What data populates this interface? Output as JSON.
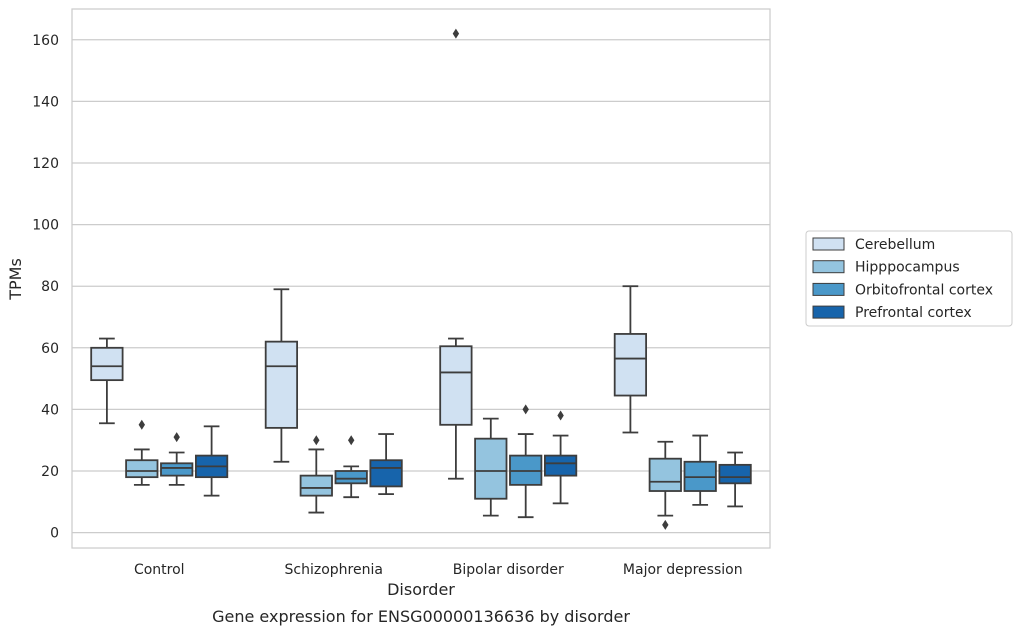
{
  "chart_data": {
    "type": "box",
    "title": "Gene expression for ENSG00000136636 by disorder",
    "xlabel": "Disorder",
    "ylabel": "TPMs",
    "ylim": [
      -5,
      170
    ],
    "yticks": [
      0,
      20,
      40,
      60,
      80,
      100,
      120,
      140,
      160
    ],
    "grid": true,
    "legend_position": "right",
    "categories": [
      "Control",
      "Schizophrenia",
      "Bipolar disorder",
      "Major depression"
    ],
    "series": [
      {
        "name": "Cerebellum",
        "color": "#d0e1f2",
        "boxes": [
          {
            "whisker_low": 35.5,
            "q1": 49.5,
            "median": 54,
            "q3": 60,
            "whisker_high": 63,
            "outliers": []
          },
          {
            "whisker_low": 23,
            "q1": 34,
            "median": 54,
            "q3": 62,
            "whisker_high": 79,
            "outliers": []
          },
          {
            "whisker_low": 17.5,
            "q1": 35,
            "median": 52,
            "q3": 60.5,
            "whisker_high": 63,
            "outliers": [
              162
            ]
          },
          {
            "whisker_low": 32.5,
            "q1": 44.5,
            "median": 56.5,
            "q3": 64.5,
            "whisker_high": 80,
            "outliers": []
          }
        ]
      },
      {
        "name": "Hipppocampus",
        "color": "#94c4df",
        "boxes": [
          {
            "whisker_low": 15.5,
            "q1": 18,
            "median": 20,
            "q3": 23.5,
            "whisker_high": 27,
            "outliers": [
              35
            ]
          },
          {
            "whisker_low": 6.5,
            "q1": 12,
            "median": 14.5,
            "q3": 18.5,
            "whisker_high": 27,
            "outliers": [
              30
            ]
          },
          {
            "whisker_low": 5.5,
            "q1": 11,
            "median": 20,
            "q3": 30.5,
            "whisker_high": 37,
            "outliers": []
          },
          {
            "whisker_low": 5.5,
            "q1": 13.5,
            "median": 16.5,
            "q3": 24,
            "whisker_high": 29.5,
            "outliers": [
              2.5
            ]
          }
        ]
      },
      {
        "name": "Orbitofrontal cortex",
        "color": "#4a98c9",
        "boxes": [
          {
            "whisker_low": 15.5,
            "q1": 18.5,
            "median": 21,
            "q3": 22.5,
            "whisker_high": 26,
            "outliers": [
              31
            ]
          },
          {
            "whisker_low": 11.5,
            "q1": 16,
            "median": 17.5,
            "q3": 20,
            "whisker_high": 21.5,
            "outliers": [
              30
            ]
          },
          {
            "whisker_low": 5,
            "q1": 15.5,
            "median": 20,
            "q3": 25,
            "whisker_high": 32,
            "outliers": [
              40
            ]
          },
          {
            "whisker_low": 9,
            "q1": 13.5,
            "median": 18,
            "q3": 23,
            "whisker_high": 31.5,
            "outliers": []
          }
        ]
      },
      {
        "name": "Prefrontal cortex",
        "color": "#1764ab",
        "boxes": [
          {
            "whisker_low": 12,
            "q1": 18,
            "median": 21.5,
            "q3": 25,
            "whisker_high": 34.5,
            "outliers": []
          },
          {
            "whisker_low": 12.5,
            "q1": 15,
            "median": 21,
            "q3": 23.5,
            "whisker_high": 32,
            "outliers": []
          },
          {
            "whisker_low": 9.5,
            "q1": 18.5,
            "median": 22.5,
            "q3": 25,
            "whisker_high": 31.5,
            "outliers": [
              38
            ]
          },
          {
            "whisker_low": 8.5,
            "q1": 16,
            "median": 18,
            "q3": 22,
            "whisker_high": 26,
            "outliers": []
          }
        ]
      }
    ]
  }
}
